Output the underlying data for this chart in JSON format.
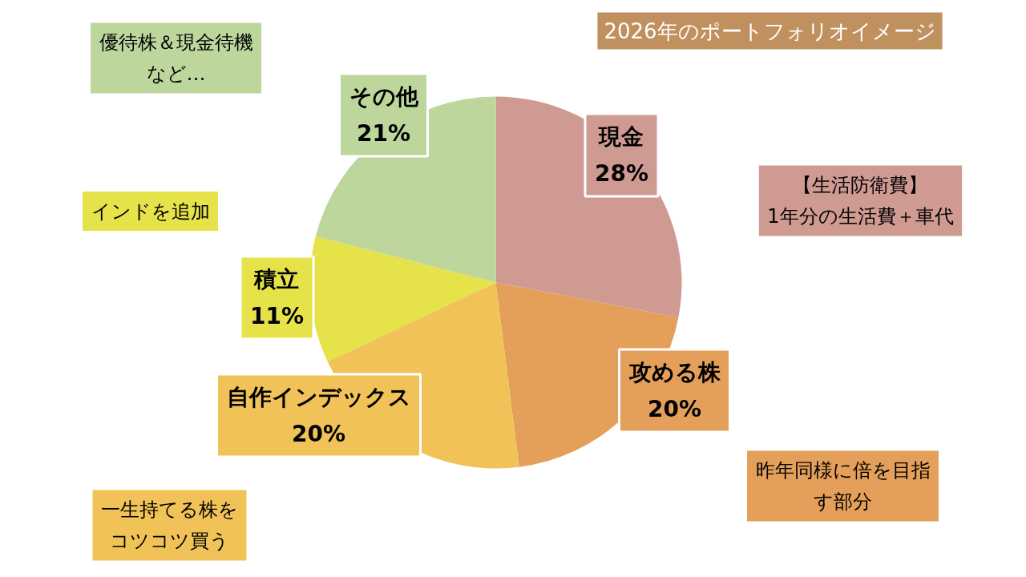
{
  "chart_data": {
    "type": "pie",
    "title": "2026年のポートフォリオイメージ",
    "categories": [
      "現金",
      "攻める株",
      "自作インデックス",
      "積立",
      "その他"
    ],
    "values": [
      28,
      20,
      20,
      11,
      21
    ],
    "colors": [
      "#cf9a92",
      "#e4a05a",
      "#f0c257",
      "#e5e24a",
      "#bcd69c"
    ],
    "value_labels": [
      "28%",
      "20%",
      "20%",
      "11%",
      "21%"
    ],
    "annotations": [
      "【生活防衛費】\n1年分の生活費＋車代",
      "昨年同様に倍を目指す部分",
      "一生持てる株をコツコツ買う",
      "インドを追加",
      "優待株＆現金待機など…"
    ]
  }
}
